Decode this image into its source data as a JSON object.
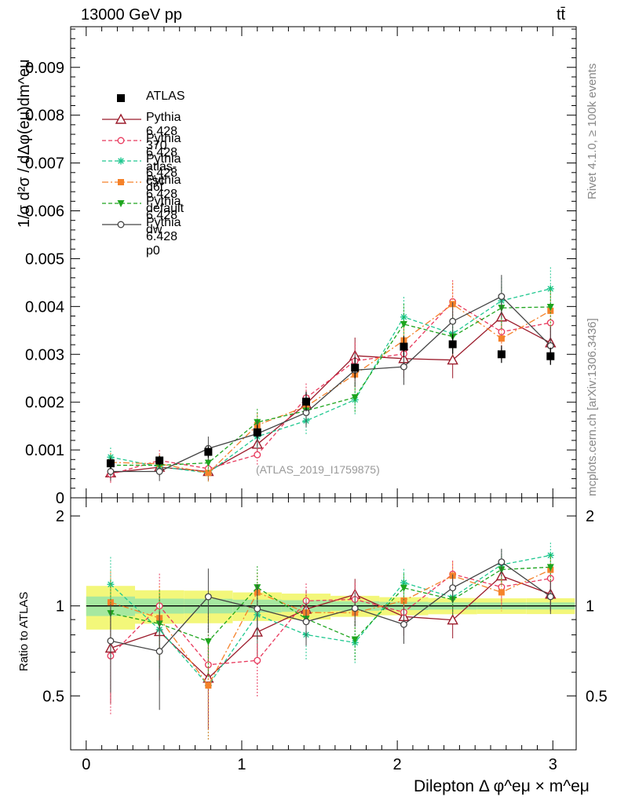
{
  "header": {
    "energy_label": "13000 GeV pp",
    "process_label": "tt̄"
  },
  "side_labels": {
    "rivet": "Rivet 4.1.0, ≥ 100k events",
    "mcplots": "mcplots.cern.ch [arXiv:1306.3436]"
  },
  "watermark": "(ATLAS_2019_I1759875)",
  "axes": {
    "main_ylabel": "1/σ d²σ / dΔφ(eμ)dm^eμ",
    "ratio_ylabel": "Ratio to ATLAS",
    "xlabel": "Dilepton Δ φ^eμ × m^eμ"
  },
  "chart_data": {
    "type": "line",
    "title": "",
    "x": [
      0.157,
      0.471,
      0.785,
      1.1,
      1.414,
      1.728,
      2.042,
      2.356,
      2.67,
      2.985
    ],
    "xlim": [
      -0.1,
      3.15
    ],
    "ylim": [
      0,
      0.00985
    ],
    "ratio_ylim": [
      0.33,
      2.3
    ],
    "x_ticks": [
      "0",
      "1",
      "2",
      "3"
    ],
    "y_ticks": [
      "0",
      "0.001",
      "0.002",
      "0.003",
      "0.004",
      "0.005",
      "0.006",
      "0.007",
      "0.008",
      "0.009"
    ],
    "ratio_ticks": [
      "0.5",
      "1",
      "2"
    ],
    "data": {
      "name": "ATLAS",
      "values": [
        0.00072,
        0.00078,
        0.00096,
        0.00137,
        0.00201,
        0.00272,
        0.00316,
        0.00321,
        0.003,
        0.00296
      ],
      "errors": [
        0.00012,
        0.0001,
        0.00012,
        0.00015,
        0.0002,
        0.00022,
        0.00022,
        0.0002,
        0.00018,
        0.00018
      ]
    },
    "series": [
      {
        "name": "Pythia 6.428 370",
        "color": "#9b1b2b",
        "marker": "open-triangle",
        "dash": "",
        "values": [
          0.00052,
          0.00064,
          0.00055,
          0.00112,
          0.00196,
          0.00297,
          0.00291,
          0.00288,
          0.00378,
          0.00324
        ],
        "errors": [
          0.00018,
          0.0002,
          0.00018,
          0.00025,
          0.0003,
          0.00038,
          0.0004,
          0.00038,
          0.00045,
          0.0004
        ]
      },
      {
        "name": "Pythia 6.428 atlas-csc",
        "color": "#e8385c",
        "marker": "open-circle",
        "dash": "5,3",
        "values": [
          0.00049,
          0.00078,
          0.00061,
          0.0009,
          0.00209,
          0.00286,
          0.00301,
          0.0041,
          0.00347,
          0.00366
        ],
        "errors": [
          0.00018,
          0.00022,
          0.0002,
          0.00022,
          0.0003,
          0.00038,
          0.0004,
          0.00045,
          0.00045,
          0.00042
        ]
      },
      {
        "name": "Pythia 6.428 d6t",
        "color": "#20c890",
        "marker": "star",
        "dash": "5,3",
        "values": [
          0.00085,
          0.00065,
          0.00052,
          0.00128,
          0.00161,
          0.00205,
          0.00378,
          0.00343,
          0.00412,
          0.00437
        ],
        "errors": [
          0.0002,
          0.0002,
          0.00018,
          0.00025,
          0.00028,
          0.00032,
          0.00042,
          0.00042,
          0.00048,
          0.00045
        ]
      },
      {
        "name": "Pythia 6.428 default",
        "color": "#f5822a",
        "marker": "square",
        "dash": "8,3,2,3",
        "values": [
          0.00074,
          0.00071,
          0.00052,
          0.00152,
          0.00191,
          0.00258,
          0.00329,
          0.00405,
          0.00333,
          0.00391
        ],
        "errors": [
          0.0002,
          0.0002,
          0.00018,
          0.00025,
          0.0003,
          0.00035,
          0.0004,
          0.00045,
          0.00045,
          0.00042
        ]
      },
      {
        "name": "Pythia 6.428 dw",
        "color": "#1ea51e",
        "marker": "triangle-down",
        "dash": "5,3",
        "values": [
          0.00068,
          0.00068,
          0.00073,
          0.00158,
          0.00182,
          0.0021,
          0.00363,
          0.00337,
          0.00397,
          0.00399
        ],
        "errors": [
          0.0002,
          0.0002,
          0.00018,
          0.00028,
          0.0003,
          0.00032,
          0.00042,
          0.0004,
          0.00045,
          0.00042
        ]
      },
      {
        "name": "Pythia 6.428 p0",
        "color": "#444444",
        "marker": "open-circle",
        "dash": "",
        "values": [
          0.00055,
          0.00055,
          0.00103,
          0.00134,
          0.00178,
          0.00267,
          0.00274,
          0.00369,
          0.00421,
          0.00318
        ],
        "errors": [
          0.00018,
          0.0002,
          0.00025,
          0.00028,
          0.0003,
          0.00035,
          0.00038,
          0.0004,
          0.00045,
          0.0004
        ]
      }
    ],
    "legend": [
      "ATLAS",
      "Pythia 6.428 370",
      "Pythia 6.428 atlas-csc",
      "Pythia 6.428 d6t",
      "Pythia 6.428 default",
      "Pythia 6.428 dw",
      "Pythia 6.428 p0"
    ]
  }
}
